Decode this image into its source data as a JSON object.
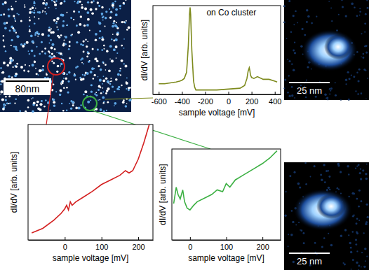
{
  "chart_data": [
    {
      "type": "line",
      "annotation": "on Co cluster",
      "x_label": "sample voltage [mV]",
      "y_label": "dI/dV [arb. units]",
      "x": [
        -600,
        -550,
        -500,
        -450,
        -420,
        -400,
        -380,
        -360,
        -345,
        -335,
        -330,
        -325,
        -315,
        -300,
        -290,
        -280,
        -260,
        -200,
        -100,
        0,
        100,
        140,
        160,
        170,
        180,
        185,
        190,
        200,
        220,
        250,
        300,
        350,
        400,
        420
      ],
      "series": [
        {
          "color": "#7d8a1c",
          "values": [
            0.12,
            0.12,
            0.13,
            0.14,
            0.15,
            0.16,
            0.18,
            0.25,
            0.55,
            0.9,
            0.98,
            0.9,
            0.5,
            0.15,
            0.08,
            0.05,
            0.05,
            0.05,
            0.05,
            0.06,
            0.07,
            0.1,
            0.18,
            0.26,
            0.3,
            0.27,
            0.22,
            0.19,
            0.18,
            0.2,
            0.17,
            0.17,
            0.15,
            0.14
          ]
        }
      ],
      "xlim": [
        -650,
        450
      ],
      "xticks": [
        -600,
        -400,
        -200,
        0,
        200,
        400
      ],
      "ylim": [
        0,
        1
      ],
      "tick_labels": "x"
    },
    {
      "type": "line",
      "x_label": "sample voltage [mV]",
      "y_label": "dI/dV [arb. units]",
      "x": [
        -90,
        -60,
        -30,
        -10,
        0,
        5,
        10,
        15,
        20,
        30,
        50,
        75,
        100,
        125,
        150,
        165,
        175,
        185,
        200,
        215,
        230
      ],
      "series": [
        {
          "color": "#d42020",
          "values": [
            0.06,
            0.1,
            0.17,
            0.23,
            0.27,
            0.3,
            0.26,
            0.33,
            0.3,
            0.33,
            0.37,
            0.42,
            0.48,
            0.52,
            0.56,
            0.6,
            0.58,
            0.6,
            0.7,
            0.84,
            1.0
          ]
        }
      ],
      "xlim": [
        -100,
        240
      ],
      "xticks": [
        0,
        100,
        200
      ],
      "ylim": [
        0,
        1
      ],
      "tick_labels": "x"
    },
    {
      "type": "line",
      "x_label": "sample voltage [mV]",
      "y_label": "dI/dV [arb. units]",
      "x": [
        -45,
        -38,
        -33,
        -27,
        -20,
        -15,
        -8,
        0,
        10,
        20,
        40,
        60,
        75,
        90,
        100,
        110,
        125,
        150,
        175,
        200,
        220,
        240
      ],
      "series": [
        {
          "color": "#3cb043",
          "values": [
            0.4,
            0.58,
            0.5,
            0.45,
            0.55,
            0.42,
            0.35,
            0.33,
            0.38,
            0.42,
            0.46,
            0.5,
            0.55,
            0.53,
            0.62,
            0.58,
            0.66,
            0.72,
            0.78,
            0.84,
            0.9,
            0.98
          ]
        }
      ],
      "xlim": [
        -50,
        250
      ],
      "xticks": [
        0,
        100,
        200
      ],
      "ylim": [
        0,
        1
      ],
      "tick_labels": "x"
    }
  ],
  "images": [
    {
      "scale_bar": "80nm"
    },
    {
      "scale_bar": "25 nm"
    },
    {
      "scale_bar": "25 nm"
    }
  ]
}
